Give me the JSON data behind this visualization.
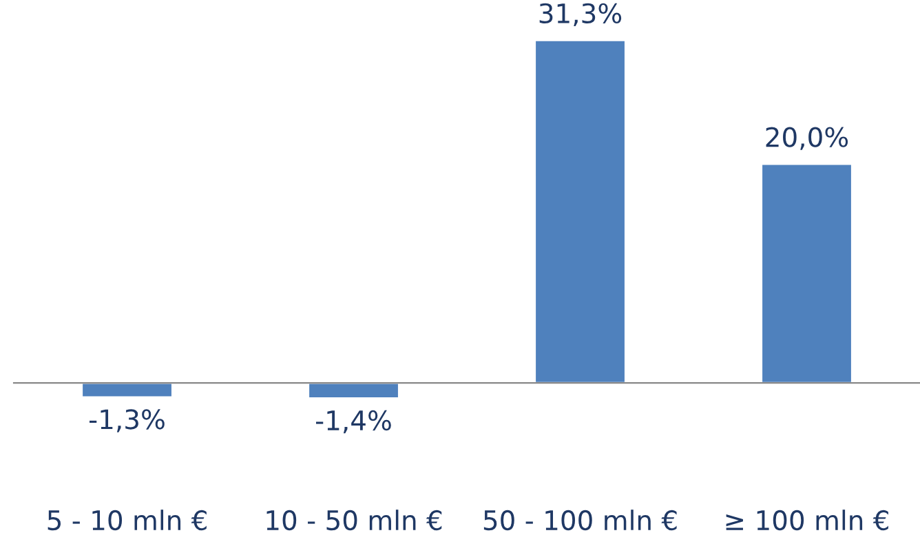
{
  "chart_data": {
    "type": "bar",
    "categories": [
      "5 - 10 mln €",
      "10 - 50 mln €",
      "50 - 100 mln €",
      "≥ 100 mln €"
    ],
    "values": [
      -1.3,
      -1.4,
      31.3,
      20.0
    ],
    "value_labels": [
      "-1,3%",
      "-1,4%",
      "31,3%",
      "20,0%"
    ],
    "color": "#4f81bd"
  }
}
